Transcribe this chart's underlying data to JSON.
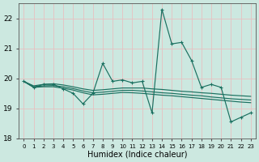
{
  "xlabel": "Humidex (Indice chaleur)",
  "ylabel": "",
  "xlim": [
    -0.5,
    23.5
  ],
  "ylim": [
    18,
    22.5
  ],
  "yticks": [
    18,
    19,
    20,
    21,
    22
  ],
  "xticks": [
    0,
    1,
    2,
    3,
    4,
    5,
    6,
    7,
    8,
    9,
    10,
    11,
    12,
    13,
    14,
    15,
    16,
    17,
    18,
    19,
    20,
    21,
    22,
    23
  ],
  "xtick_labels": [
    "0",
    "1",
    "2",
    "3",
    "4",
    "5",
    "6",
    "7",
    "8",
    "9",
    "10",
    "11",
    "12",
    "13",
    "14",
    "15",
    "16",
    "17",
    "18",
    "19",
    "20",
    "21",
    "22",
    "23"
  ],
  "background_color": "#cce8e0",
  "grid_color": "#e8c0c0",
  "line_color": "#1a7060",
  "series_main": [
    19.9,
    19.7,
    19.8,
    19.8,
    19.65,
    19.5,
    19.15,
    19.5,
    20.5,
    19.9,
    19.95,
    19.85,
    19.9,
    18.85,
    22.3,
    21.15,
    21.2,
    20.6,
    19.7,
    19.8,
    19.7,
    18.55,
    18.7,
    18.85
  ],
  "series_flat1": [
    19.9,
    19.75,
    19.8,
    19.82,
    19.78,
    19.72,
    19.65,
    19.6,
    19.62,
    19.65,
    19.68,
    19.68,
    19.68,
    19.65,
    19.63,
    19.6,
    19.57,
    19.55,
    19.52,
    19.5,
    19.47,
    19.44,
    19.42,
    19.4
  ],
  "series_flat2": [
    19.9,
    19.72,
    19.75,
    19.76,
    19.72,
    19.66,
    19.58,
    19.52,
    19.54,
    19.57,
    19.6,
    19.6,
    19.58,
    19.55,
    19.52,
    19.5,
    19.47,
    19.44,
    19.42,
    19.38,
    19.35,
    19.32,
    19.3,
    19.28
  ],
  "series_flat3": [
    19.9,
    19.7,
    19.72,
    19.72,
    19.67,
    19.61,
    19.52,
    19.45,
    19.47,
    19.5,
    19.53,
    19.52,
    19.5,
    19.47,
    19.44,
    19.42,
    19.39,
    19.36,
    19.33,
    19.3,
    19.27,
    19.24,
    19.21,
    19.19
  ]
}
